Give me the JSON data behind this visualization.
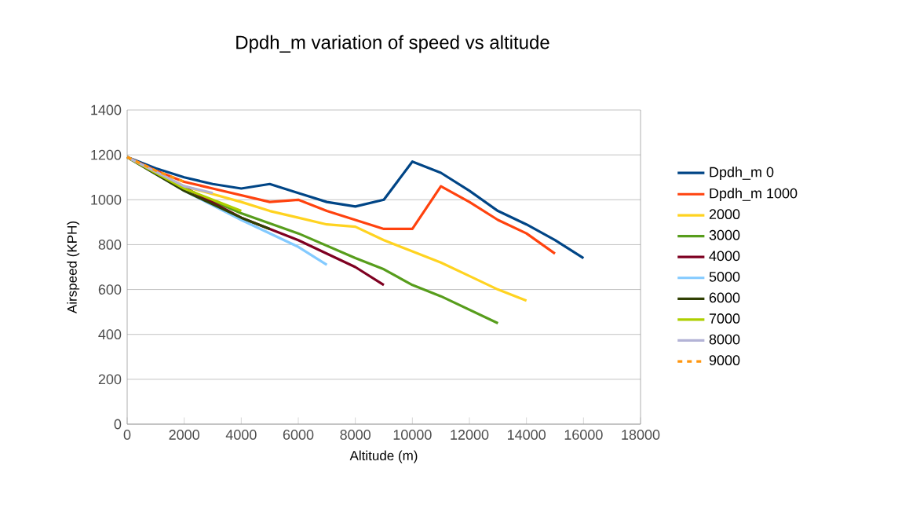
{
  "chart_data": {
    "type": "line",
    "title": "Dpdh_m variation of speed vs altitude",
    "xlabel": "Altitude (m)",
    "ylabel": "Airspeed (KPH)",
    "xlim": [
      0,
      18000
    ],
    "xticks": [
      0,
      2000,
      4000,
      6000,
      8000,
      10000,
      12000,
      14000,
      16000,
      18000
    ],
    "ylim": [
      0,
      1400
    ],
    "yticks": [
      0,
      200,
      400,
      600,
      800,
      1000,
      1200,
      1400
    ],
    "grid": "y",
    "legend": "right",
    "marker": "none",
    "series": [
      {
        "name": "Dpdh_m 0",
        "color": "#004586",
        "x": [
          0,
          1000,
          2000,
          3000,
          4000,
          5000,
          6000,
          7000,
          8000,
          9000,
          10000,
          11000,
          12000,
          13000,
          14000,
          15000,
          16000
        ],
        "values": [
          1190,
          1140,
          1100,
          1070,
          1050,
          1070,
          1030,
          990,
          970,
          1000,
          1170,
          1120,
          1040,
          950,
          890,
          820,
          740
        ]
      },
      {
        "name": "Dpdh_m 1000",
        "color": "#ff420e",
        "x": [
          0,
          1000,
          2000,
          3000,
          4000,
          5000,
          6000,
          7000,
          8000,
          9000,
          10000,
          11000,
          12000,
          13000,
          14000,
          15000
        ],
        "values": [
          1190,
          1130,
          1080,
          1050,
          1020,
          990,
          1000,
          950,
          910,
          870,
          870,
          1060,
          990,
          910,
          850,
          760
        ]
      },
      {
        "name": "2000",
        "color": "#ffd320",
        "x": [
          0,
          2000,
          4000,
          5000,
          6000,
          7000,
          8000,
          9000,
          10000,
          11000,
          12000,
          13000,
          14000
        ],
        "values": [
          1190,
          1060,
          990,
          950,
          920,
          890,
          880,
          820,
          770,
          720,
          660,
          600,
          550
        ]
      },
      {
        "name": "3000",
        "color": "#579d1c",
        "x": [
          0,
          2000,
          4000,
          6000,
          8000,
          9000,
          10000,
          11000,
          12000,
          13000
        ],
        "values": [
          1190,
          1050,
          940,
          850,
          740,
          690,
          620,
          570,
          510,
          450
        ]
      },
      {
        "name": "4000",
        "color": "#7e0021",
        "x": [
          0,
          4000,
          6000,
          8000,
          9000
        ],
        "values": [
          1190,
          920,
          820,
          700,
          620
        ]
      },
      {
        "name": "5000",
        "color": "#83caff",
        "x": [
          0,
          2000,
          4000,
          6000,
          7000
        ],
        "values": [
          1190,
          1040,
          910,
          790,
          710
        ]
      },
      {
        "name": "6000",
        "color": "#314004",
        "x": [
          0,
          2000,
          4000,
          5000
        ],
        "values": [
          1190,
          1040,
          920,
          870
        ]
      },
      {
        "name": "7000",
        "color": "#aecf00",
        "x": [
          0,
          2000,
          4000
        ],
        "values": [
          1190,
          1050,
          950
        ]
      },
      {
        "name": "8000",
        "color": "#b3b3d6",
        "x": [
          0,
          2000,
          3000
        ],
        "values": [
          1190,
          1060,
          1030
        ]
      },
      {
        "name": "9000",
        "color": "#ff950e",
        "line_style": "dashed",
        "x": [
          0,
          1000,
          2000
        ],
        "values": [
          1190,
          1130,
          1080
        ]
      }
    ]
  }
}
